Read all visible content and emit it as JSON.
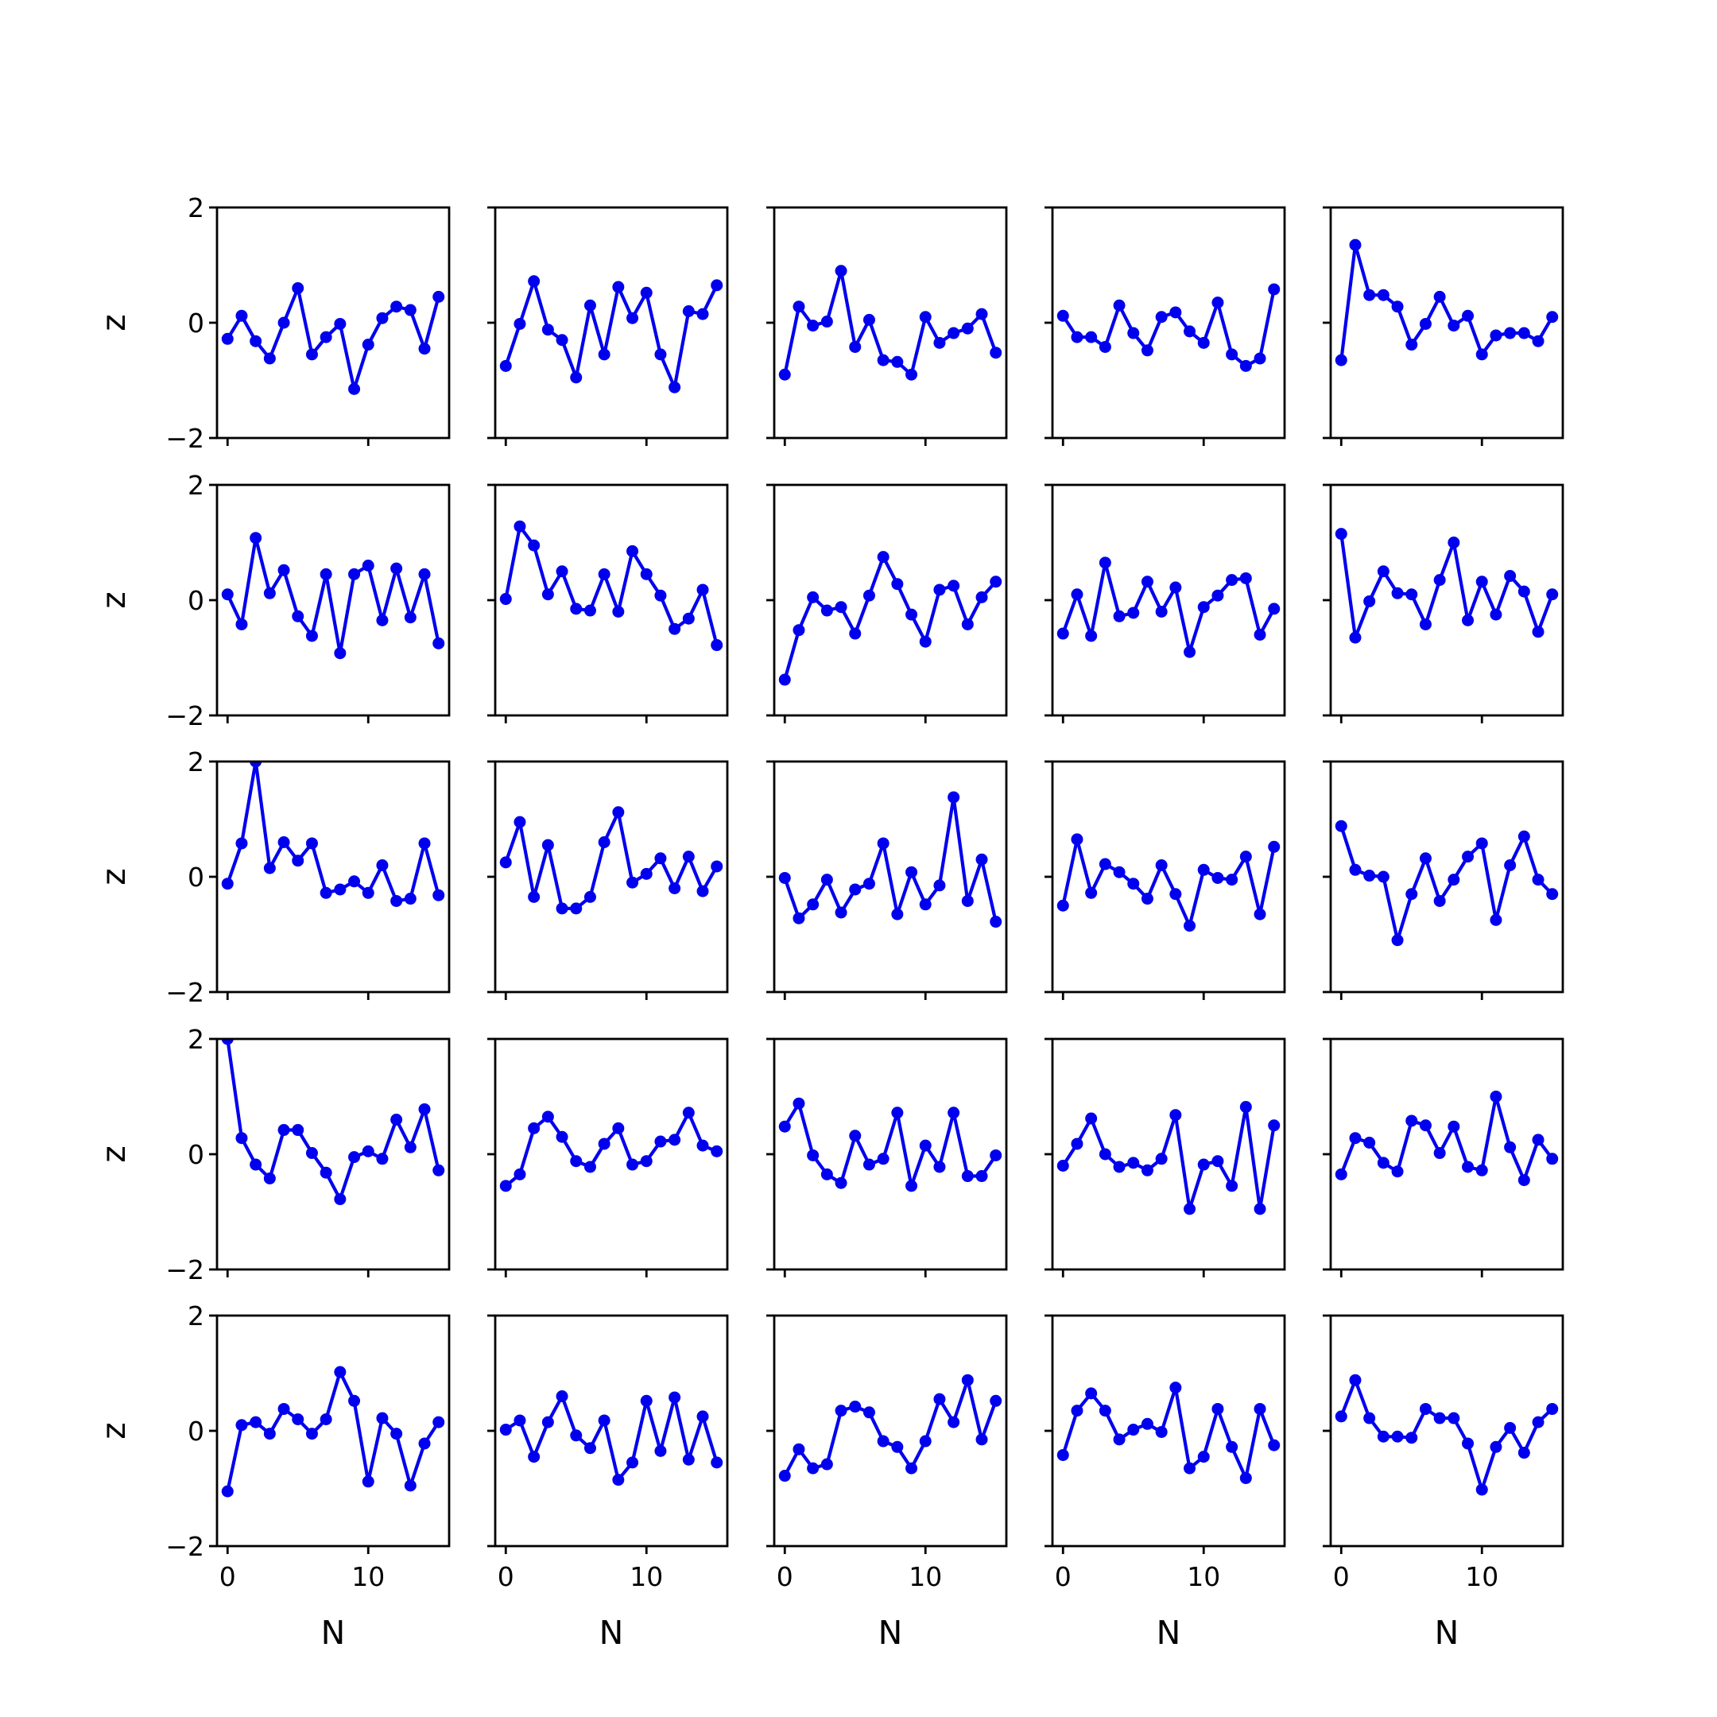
{
  "chart_data": {
    "type": "line",
    "layout": {
      "rows": 5,
      "cols": 5
    },
    "xlabel": "N",
    "ylabel": "z",
    "xlim": [
      -0.75,
      15.75
    ],
    "ylim": [
      -2,
      2
    ],
    "xticks": [
      0,
      10
    ],
    "yticks": [
      -2,
      0,
      2
    ],
    "x": [
      0,
      1,
      2,
      3,
      4,
      5,
      6,
      7,
      8,
      9,
      10,
      11,
      12,
      13,
      14,
      15
    ],
    "line_color": "#0000ee",
    "marker": "circle",
    "panels": [
      {
        "row": 0,
        "col": 0,
        "values": [
          -0.28,
          0.12,
          -0.32,
          -0.62,
          0.0,
          0.6,
          -0.55,
          -0.25,
          -0.02,
          -1.15,
          -0.38,
          0.08,
          0.28,
          0.22,
          -0.45,
          0.45
        ]
      },
      {
        "row": 0,
        "col": 1,
        "values": [
          -0.75,
          -0.02,
          0.72,
          -0.12,
          -0.3,
          -0.95,
          0.3,
          -0.55,
          0.62,
          0.08,
          0.52,
          -0.55,
          -1.12,
          0.2,
          0.15,
          0.65
        ]
      },
      {
        "row": 0,
        "col": 2,
        "values": [
          -0.9,
          0.28,
          -0.05,
          0.02,
          0.9,
          -0.42,
          0.05,
          -0.65,
          -0.68,
          -0.9,
          0.1,
          -0.35,
          -0.18,
          -0.1,
          0.15,
          -0.52
        ]
      },
      {
        "row": 0,
        "col": 3,
        "values": [
          0.12,
          -0.25,
          -0.25,
          -0.42,
          0.3,
          -0.18,
          -0.48,
          0.1,
          0.18,
          -0.15,
          -0.35,
          0.35,
          -0.55,
          -0.75,
          -0.62,
          0.58
        ]
      },
      {
        "row": 0,
        "col": 4,
        "values": [
          -0.65,
          1.35,
          0.48,
          0.48,
          0.28,
          -0.38,
          -0.02,
          0.45,
          -0.05,
          0.12,
          -0.55,
          -0.22,
          -0.18,
          -0.18,
          -0.32,
          0.1
        ]
      },
      {
        "row": 1,
        "col": 0,
        "values": [
          0.1,
          -0.42,
          1.08,
          0.12,
          0.52,
          -0.28,
          -0.62,
          0.45,
          -0.92,
          0.45,
          0.6,
          -0.35,
          0.55,
          -0.3,
          0.45,
          -0.75
        ]
      },
      {
        "row": 1,
        "col": 1,
        "values": [
          0.02,
          1.28,
          0.95,
          0.1,
          0.5,
          -0.15,
          -0.18,
          0.45,
          -0.2,
          0.85,
          0.45,
          0.08,
          -0.5,
          -0.32,
          0.18,
          -0.78
        ]
      },
      {
        "row": 1,
        "col": 2,
        "values": [
          -1.38,
          -0.52,
          0.05,
          -0.18,
          -0.12,
          -0.58,
          0.08,
          0.75,
          0.28,
          -0.25,
          -0.72,
          0.18,
          0.25,
          -0.42,
          0.05,
          0.32
        ]
      },
      {
        "row": 1,
        "col": 3,
        "values": [
          -0.58,
          0.1,
          -0.62,
          0.65,
          -0.28,
          -0.22,
          0.32,
          -0.2,
          0.22,
          -0.9,
          -0.12,
          0.08,
          0.35,
          0.38,
          -0.6,
          -0.15
        ]
      },
      {
        "row": 1,
        "col": 4,
        "values": [
          1.15,
          -0.65,
          -0.02,
          0.5,
          0.12,
          0.1,
          -0.42,
          0.35,
          1.0,
          -0.35,
          0.32,
          -0.25,
          0.42,
          0.15,
          -0.55,
          0.1
        ]
      },
      {
        "row": 2,
        "col": 0,
        "values": [
          -0.12,
          0.58,
          2.0,
          0.15,
          0.6,
          0.28,
          0.58,
          -0.28,
          -0.22,
          -0.08,
          -0.28,
          0.2,
          -0.42,
          -0.38,
          0.58,
          -0.32
        ]
      },
      {
        "row": 2,
        "col": 1,
        "values": [
          0.25,
          0.95,
          -0.35,
          0.55,
          -0.55,
          -0.55,
          -0.35,
          0.6,
          1.12,
          -0.1,
          0.05,
          0.32,
          -0.2,
          0.35,
          -0.25,
          0.18
        ]
      },
      {
        "row": 2,
        "col": 2,
        "values": [
          -0.02,
          -0.72,
          -0.48,
          -0.05,
          -0.62,
          -0.22,
          -0.12,
          0.58,
          -0.65,
          0.08,
          -0.48,
          -0.15,
          1.38,
          -0.42,
          0.3,
          -0.78
        ]
      },
      {
        "row": 2,
        "col": 3,
        "values": [
          -0.5,
          0.65,
          -0.28,
          0.22,
          0.08,
          -0.12,
          -0.38,
          0.2,
          -0.3,
          -0.85,
          0.12,
          -0.02,
          -0.05,
          0.35,
          -0.65,
          0.52
        ]
      },
      {
        "row": 2,
        "col": 4,
        "values": [
          0.88,
          0.12,
          0.02,
          0.0,
          -1.1,
          -0.3,
          0.32,
          -0.42,
          -0.05,
          0.35,
          0.58,
          -0.75,
          0.2,
          0.7,
          -0.05,
          -0.3
        ]
      },
      {
        "row": 3,
        "col": 0,
        "values": [
          2.0,
          0.28,
          -0.18,
          -0.42,
          0.42,
          0.42,
          0.02,
          -0.32,
          -0.78,
          -0.05,
          0.05,
          -0.08,
          0.6,
          0.12,
          0.78,
          -0.28
        ]
      },
      {
        "row": 3,
        "col": 1,
        "values": [
          -0.55,
          -0.35,
          0.45,
          0.65,
          0.3,
          -0.12,
          -0.22,
          0.18,
          0.45,
          -0.18,
          -0.12,
          0.22,
          0.25,
          0.72,
          0.15,
          0.05
        ]
      },
      {
        "row": 3,
        "col": 2,
        "values": [
          0.48,
          0.88,
          -0.02,
          -0.35,
          -0.5,
          0.32,
          -0.18,
          -0.08,
          0.72,
          -0.55,
          0.15,
          -0.22,
          0.72,
          -0.38,
          -0.38,
          -0.02
        ]
      },
      {
        "row": 3,
        "col": 3,
        "values": [
          -0.2,
          0.18,
          0.62,
          0.0,
          -0.22,
          -0.15,
          -0.28,
          -0.08,
          0.68,
          -0.95,
          -0.18,
          -0.12,
          -0.55,
          0.82,
          -0.95,
          0.5
        ]
      },
      {
        "row": 3,
        "col": 4,
        "values": [
          -0.35,
          0.28,
          0.2,
          -0.15,
          -0.3,
          0.58,
          0.5,
          0.02,
          0.48,
          -0.22,
          -0.28,
          1.0,
          0.12,
          -0.45,
          0.25,
          -0.08
        ]
      },
      {
        "row": 4,
        "col": 0,
        "values": [
          -1.05,
          0.1,
          0.15,
          -0.05,
          0.38,
          0.2,
          -0.05,
          0.2,
          1.02,
          0.52,
          -0.88,
          0.22,
          -0.05,
          -0.95,
          -0.22,
          0.15
        ]
      },
      {
        "row": 4,
        "col": 1,
        "values": [
          0.02,
          0.18,
          -0.45,
          0.15,
          0.6,
          -0.08,
          -0.3,
          0.18,
          -0.85,
          -0.55,
          0.52,
          -0.35,
          0.58,
          -0.5,
          0.25,
          -0.55
        ]
      },
      {
        "row": 4,
        "col": 2,
        "values": [
          -0.78,
          -0.32,
          -0.65,
          -0.58,
          0.35,
          0.42,
          0.32,
          -0.18,
          -0.28,
          -0.65,
          -0.18,
          0.55,
          0.15,
          0.88,
          -0.15,
          0.52
        ]
      },
      {
        "row": 4,
        "col": 3,
        "values": [
          -0.42,
          0.35,
          0.65,
          0.35,
          -0.15,
          0.02,
          0.12,
          -0.02,
          0.75,
          -0.65,
          -0.45,
          0.38,
          -0.28,
          -0.82,
          0.38,
          -0.25
        ]
      },
      {
        "row": 4,
        "col": 4,
        "values": [
          0.25,
          0.88,
          0.22,
          -0.1,
          -0.1,
          -0.12,
          0.38,
          0.22,
          0.22,
          -0.22,
          -1.02,
          -0.28,
          0.05,
          -0.38,
          0.15,
          0.38
        ]
      }
    ]
  }
}
